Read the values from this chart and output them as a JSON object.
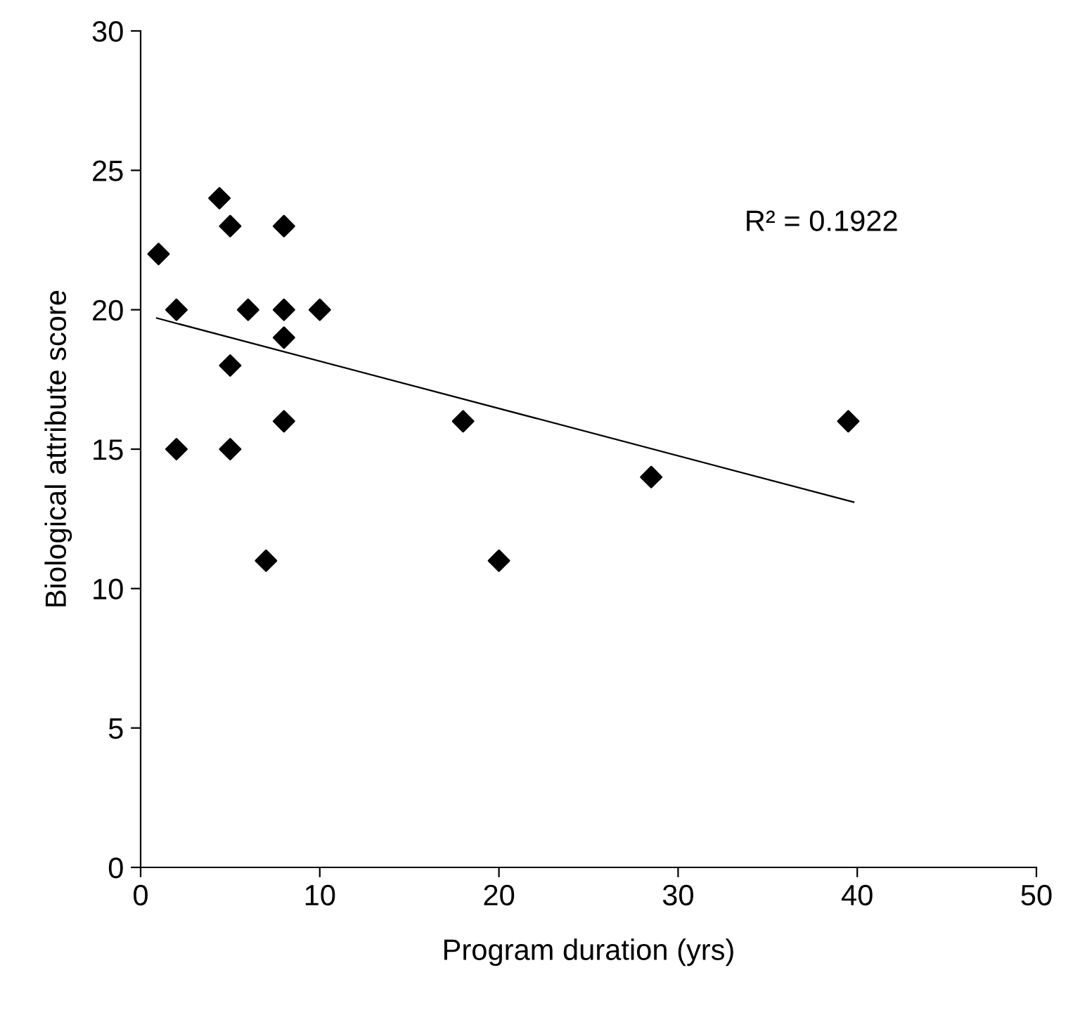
{
  "chart_data": {
    "type": "scatter",
    "xlabel": "Program duration (yrs)",
    "ylabel": "Biological attribute score",
    "xlim": [
      0,
      50
    ],
    "xticks": [
      0,
      10,
      20,
      30,
      40,
      50
    ],
    "ylim": [
      0,
      30
    ],
    "yticks": [
      0,
      5,
      10,
      15,
      20,
      25,
      30
    ],
    "marker": "diamond",
    "grid": false,
    "annotations": [
      "R² = 0.1922"
    ],
    "series": [
      {
        "color": "#000000",
        "x": [
          1,
          4.4,
          5,
          8,
          2,
          6,
          8,
          10,
          8,
          5,
          8,
          2,
          5,
          7,
          18,
          20,
          28.5,
          39.5
        ],
        "values": [
          22,
          24,
          23,
          23,
          20,
          20,
          20,
          20,
          19,
          18,
          16,
          15,
          15,
          11,
          16,
          11,
          14,
          16
        ]
      },
      {
        "type": "line",
        "color": "#000000",
        "marker": "none",
        "x": [
          0.9,
          39.8
        ],
        "values": [
          19.7,
          13.1
        ]
      }
    ]
  }
}
